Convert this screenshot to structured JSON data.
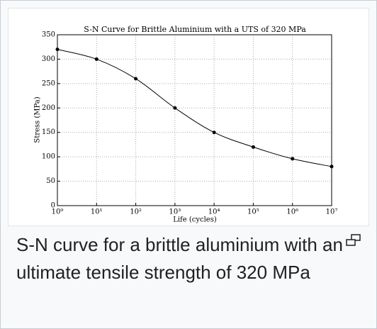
{
  "chart_data": {
    "type": "line",
    "title": "S-N Curve for Brittle Aluminium with a UTS of 320 MPa",
    "xlabel": "Life (cycles)",
    "ylabel": "Stress (MPa)",
    "x": [
      1,
      10,
      100,
      1000,
      10000,
      100000,
      1000000,
      10000000
    ],
    "values": [
      320,
      300,
      260,
      200,
      150,
      120,
      96,
      80
    ],
    "color": "#000000",
    "xscale": "log",
    "grid": true,
    "xlim": [
      1,
      10000000
    ],
    "xticks": [
      {
        "value": 1,
        "label": "10⁰"
      },
      {
        "value": 10,
        "label": "10¹"
      },
      {
        "value": 100,
        "label": "10²"
      },
      {
        "value": 1000,
        "label": "10³"
      },
      {
        "value": 10000,
        "label": "10⁴"
      },
      {
        "value": 100000,
        "label": "10⁵"
      },
      {
        "value": 1000000,
        "label": "10⁶"
      },
      {
        "value": 10000000,
        "label": "10⁷"
      }
    ],
    "ylim": [
      0,
      350
    ],
    "yticks": [
      0,
      50,
      100,
      150,
      200,
      250,
      300,
      350
    ]
  },
  "caption": "S-N curve for a brittle aluminium with an ultimate tensile strength of 320 MPa"
}
